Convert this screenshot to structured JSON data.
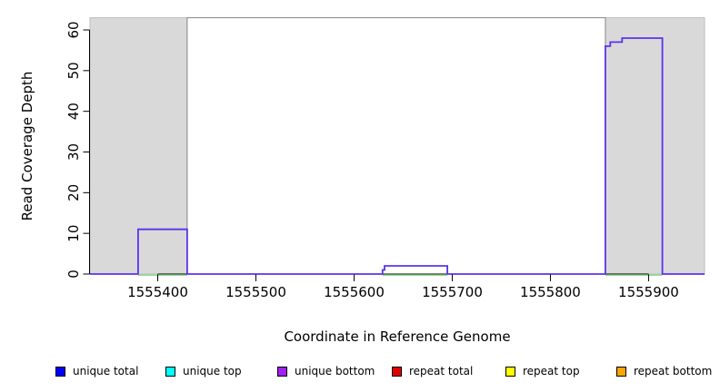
{
  "figure": {
    "background": "#FFFFFF"
  },
  "chart_data": {
    "type": "line",
    "subtype": "step-coverage",
    "title": "",
    "xlabel": "Coordinate in Reference Genome",
    "ylabel": "Read Coverage Depth",
    "xlim": [
      1555331,
      1555957
    ],
    "ylim": [
      0,
      63
    ],
    "x_ticks": [
      1555400,
      1555500,
      1555600,
      1555700,
      1555800,
      1555900
    ],
    "y_ticks": [
      0,
      10,
      20,
      30,
      40,
      50,
      60
    ],
    "grid": "off",
    "colors": {
      "repeat_shade_fill": "#D9D9D9",
      "repeat_shade_border": "#BDBDBD",
      "unique_region_border": "#878787",
      "coverage_line": "#5A33EE",
      "baseline_overlap_line": "#96DC96",
      "axis": "#000000"
    },
    "repeat_regions": [
      {
        "start": 1555331,
        "end": 1555430
      },
      {
        "start": 1555856,
        "end": 1555957
      }
    ],
    "unique_region": {
      "start": 1555430,
      "end": 1555856
    },
    "series": [
      {
        "name": "unique total / unique bottom (overlapping step line)",
        "points": [
          [
            1555331,
            0
          ],
          [
            1555380,
            0
          ],
          [
            1555380,
            11
          ],
          [
            1555430,
            11
          ],
          [
            1555430,
            0
          ],
          [
            1555629,
            0
          ],
          [
            1555629,
            1
          ],
          [
            1555631,
            1
          ],
          [
            1555631,
            2
          ],
          [
            1555695,
            2
          ],
          [
            1555695,
            0
          ],
          [
            1555856,
            0
          ],
          [
            1555856,
            56
          ],
          [
            1555861,
            56
          ],
          [
            1555861,
            57
          ],
          [
            1555873,
            57
          ],
          [
            1555873,
            58
          ],
          [
            1555914,
            58
          ],
          [
            1555914,
            0
          ],
          [
            1555957,
            0
          ]
        ]
      },
      {
        "name": "zero-depth overlap (visible green baseline)",
        "zero_segments": [
          [
            1555380,
            1555430
          ],
          [
            1555629,
            1555695
          ],
          [
            1555856,
            1555914
          ]
        ]
      }
    ],
    "legend": {
      "position": "bottom",
      "entries": [
        {
          "label": "unique total",
          "color": "#0000FF"
        },
        {
          "label": "unique top",
          "color": "#00FFFF"
        },
        {
          "label": "unique bottom",
          "color": "#A020F0"
        },
        {
          "label": "repeat total",
          "color": "#E00000"
        },
        {
          "label": "repeat top",
          "color": "#FFFF00"
        },
        {
          "label": "repeat bottom",
          "color": "#FFA500"
        }
      ]
    }
  }
}
